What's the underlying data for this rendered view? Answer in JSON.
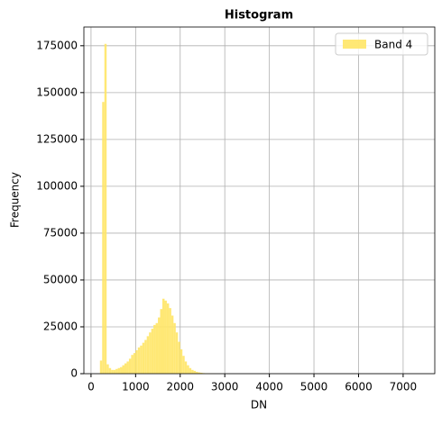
{
  "chart_data": {
    "type": "histogram",
    "title": "Histogram",
    "x_label": "DN",
    "y_label": "Frequency",
    "bins": [
      200,
      250,
      300,
      350,
      400,
      450,
      500,
      550,
      600,
      650,
      700,
      750,
      800,
      850,
      900,
      950,
      1000,
      1050,
      1100,
      1150,
      1200,
      1250,
      1300,
      1350,
      1400,
      1450,
      1500,
      1550,
      1600,
      1650,
      1700,
      1750,
      1800,
      1850,
      1900,
      1950,
      2000,
      2050,
      2100,
      2150,
      2200,
      2250,
      2300,
      2350,
      2400,
      2450,
      2500,
      2550,
      2600,
      2650,
      2700,
      2750,
      2800,
      2850,
      2900,
      2950,
      3000
    ],
    "series": [
      {
        "name": "Band 4",
        "color": "#ffe566",
        "values": [
          7000,
          145000,
          176000,
          5000,
          3000,
          2000,
          2000,
          2500,
          3000,
          3500,
          4500,
          5500,
          6500,
          8000,
          10000,
          11000,
          12500,
          14000,
          15000,
          16500,
          18000,
          20000,
          22000,
          24000,
          26000,
          27000,
          30000,
          34500,
          40000,
          39000,
          37500,
          35000,
          31000,
          27000,
          22000,
          17000,
          13000,
          9500,
          6500,
          4500,
          3000,
          2000,
          1500,
          1000,
          700,
          500,
          300,
          200,
          150,
          100,
          80,
          60,
          40,
          30,
          20,
          10
        ]
      }
    ],
    "xlim": [
      -160,
      7710
    ],
    "ylim": [
      0,
      185000
    ],
    "xticks": [
      0,
      1000,
      2000,
      3000,
      4000,
      5000,
      6000,
      7000
    ],
    "yticks": [
      0,
      25000,
      50000,
      75000,
      100000,
      125000,
      150000,
      175000
    ],
    "grid": true,
    "legend": "upper-right"
  }
}
